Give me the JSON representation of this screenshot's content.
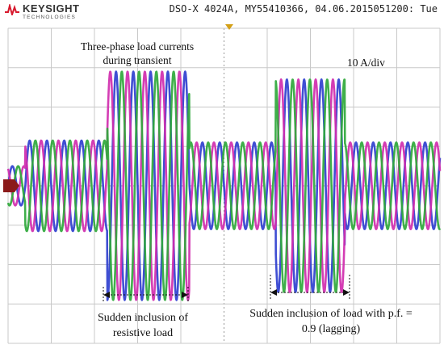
{
  "header": {
    "brand": "KEYSIGHT",
    "brand_sub": "TECHNOLOGIES",
    "device_info": "DSO-X 4024A, MY55410366, 04.06.2015051200: Tue"
  },
  "chart_data": {
    "type": "line",
    "title": "Three-phase load currents during transient",
    "title_lines": [
      "Three-phase load currents",
      "during transient"
    ],
    "scale_label": "10 A/div",
    "xlabel": "",
    "ylabel": "",
    "grid": true,
    "grid_divisions": {
      "horizontal": 10,
      "vertical": 8
    },
    "ylim_div": [
      -4,
      4
    ],
    "xlim_div": [
      0,
      10
    ],
    "cycles_per_div": 2.5,
    "phases": [
      {
        "color": "#2f3fcf",
        "phase_deg": 0
      },
      {
        "color": "#d02cae",
        "phase_deg": 120
      },
      {
        "color": "#2fa83b",
        "phase_deg": 240
      }
    ],
    "segments": [
      {
        "start_div": 0.0,
        "end_div": 0.4,
        "amplitude_div": 0.5,
        "phase_shift_deg": 0
      },
      {
        "start_div": 0.4,
        "end_div": 2.3,
        "amplitude_div": 1.15,
        "phase_shift_deg": 0
      },
      {
        "start_div": 2.3,
        "end_div": 4.2,
        "amplitude_div": 2.9,
        "phase_shift_deg": 0
      },
      {
        "start_div": 4.2,
        "end_div": 6.2,
        "amplitude_div": 1.1,
        "phase_shift_deg": 0
      },
      {
        "start_div": 6.2,
        "end_div": 7.8,
        "amplitude_div": 2.7,
        "phase_shift_deg": 40
      },
      {
        "start_div": 7.8,
        "end_div": 10.0,
        "amplitude_div": 1.1,
        "phase_shift_deg": 40
      }
    ],
    "annotations": [
      {
        "id": "resistive",
        "lines": [
          "Sudden inclusion of",
          "resistive load"
        ],
        "span_div": [
          2.3,
          4.2
        ]
      },
      {
        "id": "lagging",
        "lines": [
          "Sudden inclusion of load with p.f. =",
          "0.9 (lagging)"
        ],
        "span_div": [
          6.2,
          7.8
        ]
      }
    ]
  },
  "colors": {
    "grid": "#c8c8c8",
    "grid_center": "#9a9a9a",
    "ground_marker": "#8b1a1a",
    "trigger_marker": "#d4a017",
    "logo_red": "#d7192d"
  }
}
